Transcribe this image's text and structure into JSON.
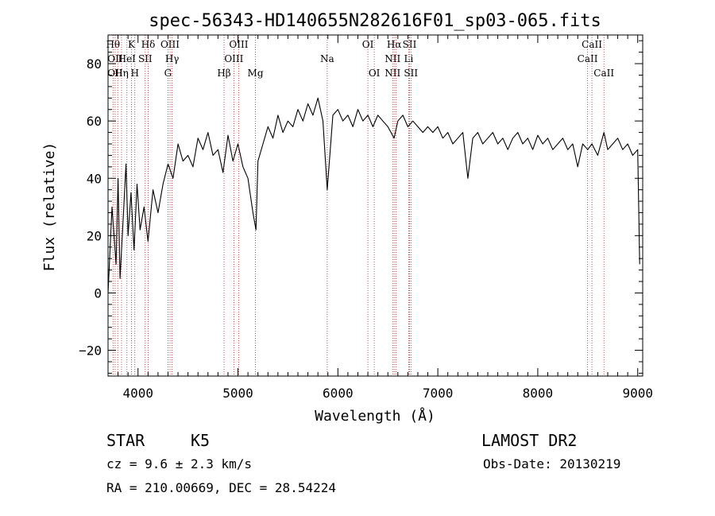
{
  "chart_data": {
    "type": "line",
    "title": "spec-56343-HD140655N282616F01_sp03-065.fits",
    "xlabel": "Wavelength (Å)",
    "ylabel": "Flux (relative)",
    "xlim": [
      3700,
      9050
    ],
    "ylim": [
      -29,
      90
    ],
    "xticks": [
      4000,
      5000,
      6000,
      7000,
      8000,
      9000
    ],
    "yticks": [
      -20,
      0,
      20,
      40,
      60,
      80
    ],
    "grid": false,
    "series": [
      {
        "color": "#000000",
        "x": [
          3700,
          3740,
          3780,
          3800,
          3820,
          3850,
          3880,
          3900,
          3930,
          3960,
          3990,
          4020,
          4060,
          4100,
          4150,
          4200,
          4250,
          4300,
          4350,
          4400,
          4450,
          4500,
          4550,
          4600,
          4650,
          4700,
          4750,
          4800,
          4850,
          4900,
          4950,
          5000,
          5050,
          5100,
          5150,
          5180,
          5200,
          5250,
          5300,
          5350,
          5400,
          5450,
          5500,
          5550,
          5600,
          5650,
          5700,
          5750,
          5800,
          5850,
          5893,
          5950,
          6000,
          6050,
          6100,
          6150,
          6200,
          6250,
          6300,
          6350,
          6400,
          6450,
          6500,
          6563,
          6600,
          6650,
          6700,
          6750,
          6800,
          6850,
          6900,
          6950,
          7000,
          7050,
          7100,
          7150,
          7200,
          7250,
          7300,
          7350,
          7400,
          7450,
          7500,
          7550,
          7600,
          7650,
          7700,
          7750,
          7800,
          7850,
          7900,
          7950,
          8000,
          8050,
          8100,
          8150,
          8200,
          8250,
          8300,
          8350,
          8400,
          8450,
          8500,
          8542,
          8600,
          8662,
          8700,
          8750,
          8800,
          8850,
          8900,
          8950,
          9000,
          9020
        ],
        "values": [
          0,
          30,
          10,
          40,
          5,
          25,
          45,
          20,
          35,
          15,
          38,
          22,
          30,
          18,
          36,
          28,
          38,
          45,
          40,
          52,
          46,
          48,
          44,
          54,
          50,
          56,
          48,
          50,
          42,
          55,
          46,
          52,
          44,
          40,
          28,
          22,
          46,
          52,
          58,
          54,
          62,
          56,
          60,
          58,
          64,
          60,
          66,
          62,
          68,
          60,
          36,
          62,
          64,
          60,
          62,
          58,
          64,
          60,
          62,
          58,
          62,
          60,
          58,
          54,
          60,
          62,
          58,
          60,
          58,
          56,
          58,
          56,
          58,
          54,
          56,
          52,
          54,
          56,
          40,
          54,
          56,
          52,
          54,
          56,
          52,
          54,
          50,
          54,
          56,
          52,
          54,
          50,
          55,
          52,
          54,
          50,
          52,
          54,
          50,
          52,
          44,
          52,
          50,
          52,
          48,
          56,
          50,
          52,
          54,
          50,
          52,
          48,
          50,
          10
        ]
      }
    ],
    "lines": [
      {
        "x": 3750,
        "top": "Hθ",
        "mid": "",
        "low": ""
      },
      {
        "x": 3771,
        "top": "",
        "mid": "OII",
        "low": "OII"
      },
      {
        "x": 3797,
        "top": "",
        "mid": "",
        "low": ""
      },
      {
        "x": 3835,
        "top": "",
        "mid": "",
        "low": "Hη"
      },
      {
        "x": 3889,
        "top": "",
        "mid": "HeI",
        "low": ""
      },
      {
        "x": 3934,
        "top": "K",
        "mid": "",
        "low": ""
      },
      {
        "x": 3968,
        "top": "",
        "mid": "",
        "low": "H"
      },
      {
        "x": 4072,
        "top": "",
        "mid": "SII",
        "low": ""
      },
      {
        "x": 4102,
        "top": "Hδ",
        "mid": "",
        "low": ""
      },
      {
        "x": 4300,
        "top": "",
        "mid": "",
        "low": "G"
      },
      {
        "x": 4320,
        "top": "OIII",
        "mid": "",
        "low": ""
      },
      {
        "x": 4341,
        "top": "",
        "mid": "Hγ",
        "low": ""
      },
      {
        "x": 4861,
        "top": "",
        "mid": "",
        "low": "Hβ"
      },
      {
        "x": 4959,
        "top": "",
        "mid": "OIII",
        "low": ""
      },
      {
        "x": 5007,
        "top": "OIII",
        "mid": "",
        "low": ""
      },
      {
        "x": 5175,
        "top": "",
        "mid": "",
        "low": "Mg"
      },
      {
        "x": 5893,
        "top": "",
        "mid": "Na",
        "low": ""
      },
      {
        "x": 6300,
        "top": "OI",
        "mid": "",
        "low": ""
      },
      {
        "x": 6364,
        "top": "",
        "mid": "",
        "low": "OI"
      },
      {
        "x": 6548,
        "top": "",
        "mid": "NII",
        "low": "NII"
      },
      {
        "x": 6563,
        "top": "Hα",
        "mid": "",
        "low": ""
      },
      {
        "x": 6583,
        "top": "",
        "mid": "",
        "low": ""
      },
      {
        "x": 6708,
        "top": "",
        "mid": "Li",
        "low": ""
      },
      {
        "x": 6717,
        "top": "SII",
        "mid": "",
        "low": ""
      },
      {
        "x": 6731,
        "top": "",
        "mid": "",
        "low": "SII"
      },
      {
        "x": 8498,
        "top": "",
        "mid": "CaII",
        "low": ""
      },
      {
        "x": 8542,
        "top": "CaII",
        "mid": "",
        "low": ""
      },
      {
        "x": 8662,
        "top": "",
        "mid": "",
        "low": "CaII"
      }
    ]
  },
  "footer": {
    "object_class": "STAR",
    "subclass": "K5",
    "cz": "cz = 9.6 ± 2.3 km/s",
    "radec": "RA = 210.00669, DEC =  28.54224",
    "survey": "LAMOST DR2",
    "obs_date": "Obs-Date: 20130219"
  }
}
